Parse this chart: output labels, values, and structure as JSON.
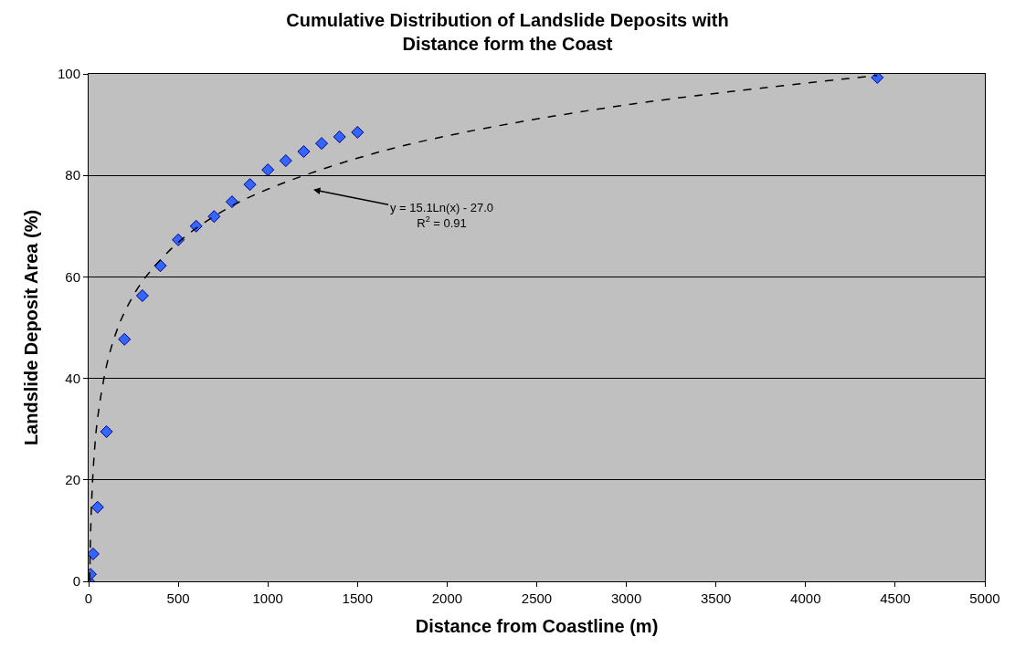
{
  "chart_data": {
    "type": "scatter",
    "title": "Cumulative Distribution of Landslide Deposits with\nDistance form the Coast",
    "xlabel": "Distance from Coastline (m)",
    "ylabel": "Landslide Deposit Area (%)",
    "xlim": [
      0,
      5000
    ],
    "xticks": [
      0,
      500,
      1000,
      1500,
      2000,
      2500,
      3000,
      3500,
      4000,
      4500,
      5000
    ],
    "ylim": [
      0,
      100
    ],
    "yticks": [
      0,
      20,
      40,
      60,
      80,
      100
    ],
    "grid": "y",
    "legend": false,
    "marker": "diamond",
    "series": [
      {
        "color": "#3366ff",
        "x": [
          0,
          10,
          25,
          50,
          100,
          200,
          300,
          400,
          500,
          600,
          700,
          800,
          900,
          1000,
          1100,
          1200,
          1300,
          1400,
          1500,
          4400
        ],
        "values": [
          0,
          1.4,
          5.4,
          14.6,
          29.5,
          47.7,
          56.3,
          62.2,
          67.3,
          70,
          71.9,
          74.8,
          78.2,
          81.1,
          82.9,
          84.7,
          86.3,
          87.6,
          88.5,
          99.3
        ]
      },
      {
        "type": "line",
        "color": "#000000",
        "line_style": "dashed",
        "marker": "none",
        "x": [
          6,
          10,
          15,
          20,
          30,
          50,
          100,
          150,
          200,
          300,
          500,
          750,
          1000,
          1500,
          2000,
          3000,
          4400
        ],
        "values": [
          0.1,
          7.8,
          13.9,
          18.2,
          24.4,
          32.1,
          42.5,
          48.7,
          53.0,
          59.1,
          66.8,
          73.0,
          77.3,
          83.4,
          87.8,
          93.9,
          99.7
        ]
      }
    ],
    "annotations": [
      "y = 15.1Ln(x) - 27.0\nR$^{2}$ = 0.91"
    ]
  }
}
